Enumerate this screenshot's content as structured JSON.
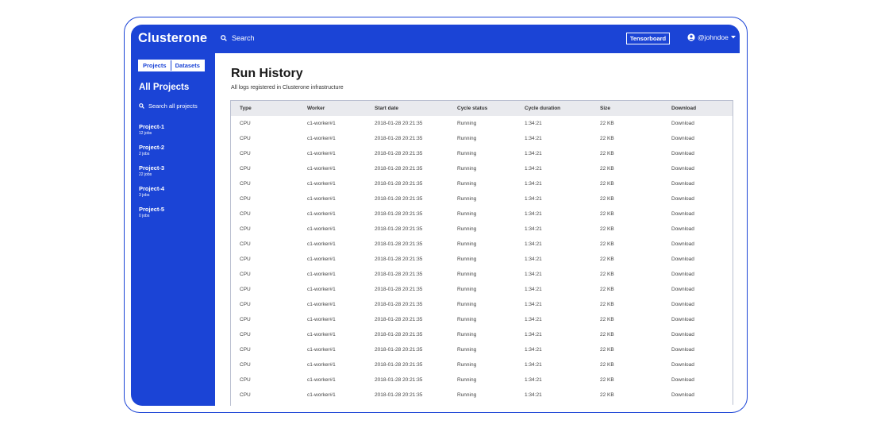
{
  "header": {
    "brand": "Clusterone",
    "search_label": "Search",
    "tensorboard_label": "Tensorboard",
    "user_label": "@johndoe"
  },
  "sidebar": {
    "tabs": [
      "Projects",
      "Datasets"
    ],
    "title": "All Projects",
    "search_label": "Search all projects",
    "projects": [
      {
        "name": "Project-1",
        "jobs": "12 jobs"
      },
      {
        "name": "Project-2",
        "jobs": "2 jobs"
      },
      {
        "name": "Project-3",
        "jobs": "22 jobs"
      },
      {
        "name": "Project-4",
        "jobs": "3 jobs"
      },
      {
        "name": "Project-5",
        "jobs": "0 jobs"
      }
    ]
  },
  "main": {
    "title": "Run History",
    "subtitle": "All logs registered in Clusterone infrastructure"
  },
  "table": {
    "columns": [
      "Type",
      "Worker",
      "Start date",
      "Cycle status",
      "Cycle duration",
      "Size",
      "Download"
    ],
    "rows": [
      [
        "CPU",
        "c1-worker#1",
        "2018-01-28 20:21:35",
        "Running",
        "1:34:21",
        "22 KB",
        "Download"
      ],
      [
        "CPU",
        "c1-worker#1",
        "2018-01-28 20:21:35",
        "Running",
        "1:34:21",
        "22 KB",
        "Download"
      ],
      [
        "CPU",
        "c1-worker#1",
        "2018-01-28 20:21:35",
        "Running",
        "1:34:21",
        "22 KB",
        "Download"
      ],
      [
        "CPU",
        "c1-worker#1",
        "2018-01-28 20:21:35",
        "Running",
        "1:34:21",
        "22 KB",
        "Download"
      ],
      [
        "CPU",
        "c1-worker#1",
        "2018-01-28 20:21:35",
        "Running",
        "1:34:21",
        "22 KB",
        "Download"
      ],
      [
        "CPU",
        "c1-worker#1",
        "2018-01-28 20:21:35",
        "Running",
        "1:34:21",
        "22 KB",
        "Download"
      ],
      [
        "CPU",
        "c1-worker#1",
        "2018-01-28 20:21:35",
        "Running",
        "1:34:21",
        "22 KB",
        "Download"
      ],
      [
        "CPU",
        "c1-worker#1",
        "2018-01-28 20:21:35",
        "Running",
        "1:34:21",
        "22 KB",
        "Download"
      ],
      [
        "CPU",
        "c1-worker#1",
        "2018-01-28 20:21:35",
        "Running",
        "1:34:21",
        "22 KB",
        "Download"
      ],
      [
        "CPU",
        "c1-worker#1",
        "2018-01-28 20:21:35",
        "Running",
        "1:34:21",
        "22 KB",
        "Download"
      ],
      [
        "CPU",
        "c1-worker#1",
        "2018-01-28 20:21:35",
        "Running",
        "1:34:21",
        "22 KB",
        "Download"
      ],
      [
        "CPU",
        "c1-worker#1",
        "2018-01-28 20:21:35",
        "Running",
        "1:34:21",
        "22 KB",
        "Download"
      ],
      [
        "CPU",
        "c1-worker#1",
        "2018-01-28 20:21:35",
        "Running",
        "1:34:21",
        "22 KB",
        "Download"
      ],
      [
        "CPU",
        "c1-worker#1",
        "2018-01-28 20:21:35",
        "Running",
        "1:34:21",
        "22 KB",
        "Download"
      ],
      [
        "CPU",
        "c1-worker#1",
        "2018-01-28 20:21:35",
        "Running",
        "1:34:21",
        "22 KB",
        "Download"
      ],
      [
        "CPU",
        "c1-worker#1",
        "2018-01-28 20:21:35",
        "Running",
        "1:34:21",
        "22 KB",
        "Download"
      ],
      [
        "CPU",
        "c1-worker#1",
        "2018-01-28 20:21:35",
        "Running",
        "1:34:21",
        "22 KB",
        "Download"
      ],
      [
        "CPU",
        "c1-worker#1",
        "2018-01-28 20:21:35",
        "Running",
        "1:34:21",
        "22 KB",
        "Download"
      ],
      [
        "CPU",
        "c1-worker#1",
        "2018-01-28 20:21:35",
        "Running",
        "1:34:21",
        "22 KB",
        "Download"
      ]
    ]
  },
  "colors": {
    "brand_blue": "#1b44d6",
    "table_header_bg": "#e9eaee",
    "table_border": "#b9bfd0"
  },
  "icons": {
    "search": "search-icon",
    "user": "user-circle-icon",
    "caret": "caret-down-icon"
  }
}
